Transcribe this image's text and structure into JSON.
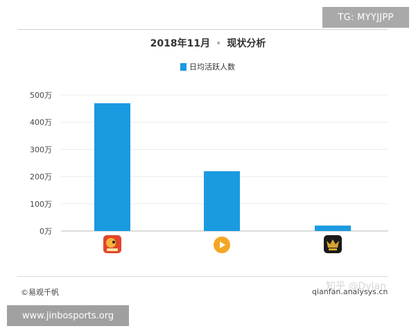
{
  "badge": {
    "tg": "TG: MYYJJPP",
    "site": "www.jinbosports.org"
  },
  "header": {
    "date": "2018年11月",
    "separator": "•",
    "subtitle": "现状分析"
  },
  "legend": {
    "label": "日均活跃人数",
    "color": "#1a9ae0"
  },
  "footer": {
    "source_left": "©易观千帆",
    "source_right": "qianfan.analysys.cn",
    "watermark": "知乎 @Dylan"
  },
  "chart_data": {
    "type": "bar",
    "title": "2018年11月 • 现状分析",
    "categories": [
      "app-1",
      "app-2",
      "app-3"
    ],
    "category_icons": [
      "app-icon-red-mascot",
      "app-icon-orange-video",
      "app-icon-gold-crown"
    ],
    "series": [
      {
        "name": "日均活跃人数",
        "values": [
          470,
          220,
          20
        ],
        "color": "#1a9ae0"
      }
    ],
    "unit": "万",
    "ylim": [
      0,
      500
    ],
    "yticks": [
      "0万",
      "100万",
      "200万",
      "300万",
      "400万",
      "500万"
    ],
    "grid": true,
    "legend_position": "top-center"
  }
}
